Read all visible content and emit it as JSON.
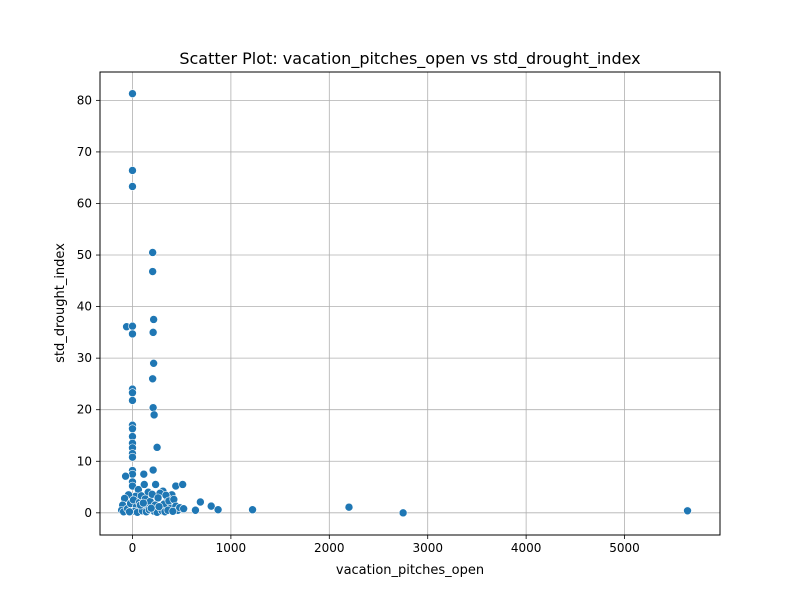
{
  "chart_data": {
    "type": "scatter",
    "title": "Scatter Plot: vacation_pitches_open vs std_drought_index",
    "xlabel": "vacation_pitches_open",
    "ylabel": "std_drought_index",
    "xlim": [
      -330,
      5970
    ],
    "ylim": [
      -4.3,
      85.5
    ],
    "xticks": [
      0,
      1000,
      2000,
      3000,
      4000,
      5000
    ],
    "yticks": [
      0,
      10,
      20,
      30,
      40,
      50,
      60,
      70,
      80
    ],
    "grid": true,
    "marker_color": "#1f77b4",
    "points": [
      {
        "x": 0,
        "y": 81.3
      },
      {
        "x": 0,
        "y": 66.4
      },
      {
        "x": 0,
        "y": 63.3
      },
      {
        "x": -60,
        "y": 36.1
      },
      {
        "x": 0,
        "y": 36.2
      },
      {
        "x": 0,
        "y": 34.7
      },
      {
        "x": 0,
        "y": 24.0
      },
      {
        "x": 0,
        "y": 23.3
      },
      {
        "x": 0,
        "y": 21.8
      },
      {
        "x": 0,
        "y": 17.0
      },
      {
        "x": 0,
        "y": 16.3
      },
      {
        "x": 0,
        "y": 14.8
      },
      {
        "x": 0,
        "y": 13.5
      },
      {
        "x": 0,
        "y": 12.6
      },
      {
        "x": 0,
        "y": 11.5
      },
      {
        "x": 0,
        "y": 10.8
      },
      {
        "x": 0,
        "y": 8.2
      },
      {
        "x": 0,
        "y": 7.5
      },
      {
        "x": -70,
        "y": 7.1
      },
      {
        "x": 0,
        "y": 6.0
      },
      {
        "x": 0,
        "y": 5.2
      },
      {
        "x": 205,
        "y": 50.5
      },
      {
        "x": 205,
        "y": 46.8
      },
      {
        "x": 215,
        "y": 37.5
      },
      {
        "x": 210,
        "y": 35.0
      },
      {
        "x": 215,
        "y": 29.0
      },
      {
        "x": 205,
        "y": 26.0
      },
      {
        "x": 210,
        "y": 20.4
      },
      {
        "x": 220,
        "y": 19.0
      },
      {
        "x": 250,
        "y": 12.7
      },
      {
        "x": 210,
        "y": 8.3
      },
      {
        "x": 115,
        "y": 7.5
      },
      {
        "x": 120,
        "y": 5.5
      },
      {
        "x": 235,
        "y": 5.5
      },
      {
        "x": 310,
        "y": 4.2
      },
      {
        "x": 280,
        "y": 3.8
      },
      {
        "x": 440,
        "y": 5.2
      },
      {
        "x": 510,
        "y": 5.5
      },
      {
        "x": 400,
        "y": 3.5
      },
      {
        "x": 350,
        "y": 3.0
      },
      {
        "x": 160,
        "y": 4.0
      },
      {
        "x": 60,
        "y": 4.5
      },
      {
        "x": 30,
        "y": 3.2
      },
      {
        "x": -40,
        "y": 3.5
      },
      {
        "x": -80,
        "y": 2.8
      },
      {
        "x": -100,
        "y": 1.5
      },
      {
        "x": -110,
        "y": 0.5
      },
      {
        "x": -90,
        "y": 0.2
      },
      {
        "x": -50,
        "y": 0.8
      },
      {
        "x": -20,
        "y": 1.8
      },
      {
        "x": 10,
        "y": 2.5
      },
      {
        "x": 40,
        "y": 1.2
      },
      {
        "x": 70,
        "y": 2.0
      },
      {
        "x": 90,
        "y": 3.3
      },
      {
        "x": 130,
        "y": 2.7
      },
      {
        "x": 150,
        "y": 1.0
      },
      {
        "x": 180,
        "y": 2.2
      },
      {
        "x": 200,
        "y": 3.6
      },
      {
        "x": 230,
        "y": 1.5
      },
      {
        "x": 260,
        "y": 2.9
      },
      {
        "x": 290,
        "y": 0.8
      },
      {
        "x": 320,
        "y": 1.7
      },
      {
        "x": 340,
        "y": 3.4
      },
      {
        "x": 370,
        "y": 2.3
      },
      {
        "x": 390,
        "y": 0.9
      },
      {
        "x": 420,
        "y": 2.6
      },
      {
        "x": 440,
        "y": 1.3
      },
      {
        "x": 460,
        "y": 0.5
      },
      {
        "x": 20,
        "y": 0.3
      },
      {
        "x": 50,
        "y": 0.1
      },
      {
        "x": 100,
        "y": 0.4
      },
      {
        "x": 140,
        "y": 0.2
      },
      {
        "x": 170,
        "y": 0.6
      },
      {
        "x": 220,
        "y": 0.3
      },
      {
        "x": 250,
        "y": 0.1
      },
      {
        "x": 300,
        "y": 0.4
      },
      {
        "x": 330,
        "y": 0.2
      },
      {
        "x": 360,
        "y": 0.5
      },
      {
        "x": 410,
        "y": 0.3
      },
      {
        "x": -30,
        "y": 0.2
      },
      {
        "x": 80,
        "y": 1.5
      },
      {
        "x": 110,
        "y": 1.9
      },
      {
        "x": 190,
        "y": 0.9
      },
      {
        "x": 270,
        "y": 1.2
      },
      {
        "x": 480,
        "y": 1.0
      },
      {
        "x": 520,
        "y": 0.8
      },
      {
        "x": 640,
        "y": 0.5
      },
      {
        "x": 690,
        "y": 2.1
      },
      {
        "x": 800,
        "y": 1.3
      },
      {
        "x": 870,
        "y": 0.6
      },
      {
        "x": 1220,
        "y": 0.6
      },
      {
        "x": 2200,
        "y": 1.1
      },
      {
        "x": 2750,
        "y": 0.0
      },
      {
        "x": 5640,
        "y": 0.4
      }
    ]
  }
}
